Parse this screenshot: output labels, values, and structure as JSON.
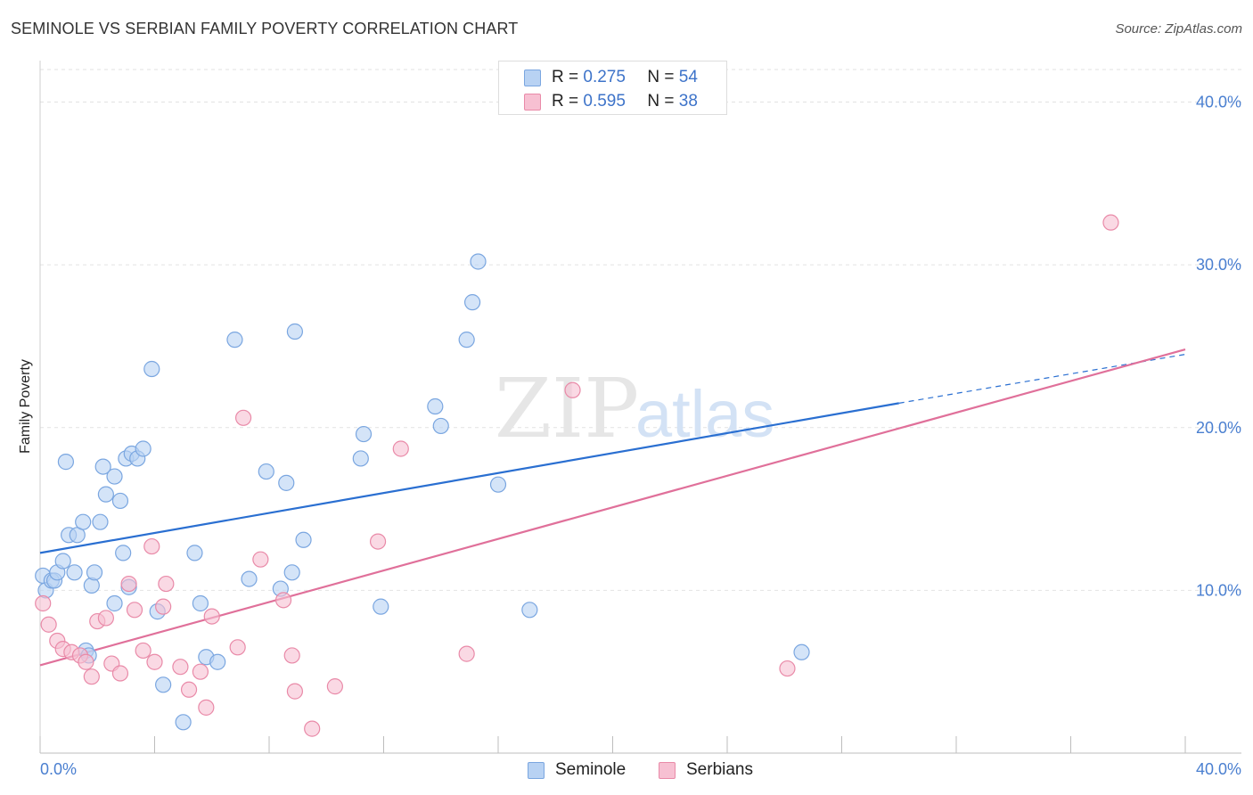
{
  "title": "SEMINOLE VS SERBIAN FAMILY POVERTY CORRELATION CHART",
  "source": "Source: ZipAtlas.com",
  "legend": [
    {
      "r_label": "R =",
      "r_value": "0.275",
      "n_label": "N =",
      "n_value": "54"
    },
    {
      "r_label": "R =",
      "r_value": "0.595",
      "n_label": "N =",
      "n_value": "38"
    }
  ],
  "bottom_legend": {
    "seminole": "Seminole",
    "serbians": "Serbians"
  },
  "colors": {
    "seminole_fill": "#b8d2f3",
    "seminole_stroke": "#7aa6e0",
    "seminole_line": "#2a6fd1",
    "serbians_fill": "#f7c0d2",
    "serbians_stroke": "#e98aa8",
    "serbians_line": "#e0709a",
    "tick_text": "#4a7fd0",
    "grid": "#e2e2e2"
  },
  "chart_data": {
    "type": "scatter",
    "title": "SEMINOLE VS SERBIAN FAMILY POVERTY CORRELATION CHART",
    "xlabel": "",
    "ylabel": "Family Poverty",
    "xlim": [
      0,
      40
    ],
    "ylim": [
      0,
      42
    ],
    "x_tick_labels": [
      "0.0%",
      "40.0%"
    ],
    "y_ticks": [
      10,
      20,
      30,
      40
    ],
    "y_tick_labels": [
      "10.0%",
      "20.0%",
      "30.0%",
      "40.0%"
    ],
    "grid": true,
    "legend_position": "top-center",
    "series": [
      {
        "name": "Seminole",
        "points": [
          [
            0.1,
            10.9
          ],
          [
            0.2,
            10.0
          ],
          [
            0.4,
            10.6
          ],
          [
            0.5,
            10.6
          ],
          [
            0.6,
            11.1
          ],
          [
            0.8,
            11.8
          ],
          [
            0.9,
            17.9
          ],
          [
            1.0,
            13.4
          ],
          [
            1.2,
            11.1
          ],
          [
            1.3,
            13.4
          ],
          [
            1.5,
            14.2
          ],
          [
            1.6,
            6.3
          ],
          [
            1.7,
            6.0
          ],
          [
            1.8,
            10.3
          ],
          [
            1.9,
            11.1
          ],
          [
            2.1,
            14.2
          ],
          [
            2.2,
            17.6
          ],
          [
            2.3,
            15.9
          ],
          [
            2.6,
            17.0
          ],
          [
            2.8,
            15.5
          ],
          [
            2.9,
            12.3
          ],
          [
            2.6,
            9.2
          ],
          [
            3.0,
            18.1
          ],
          [
            3.1,
            10.2
          ],
          [
            3.2,
            18.4
          ],
          [
            3.4,
            18.1
          ],
          [
            3.6,
            18.7
          ],
          [
            3.9,
            23.6
          ],
          [
            4.1,
            8.7
          ],
          [
            4.3,
            4.2
          ],
          [
            5.0,
            1.9
          ],
          [
            5.4,
            12.3
          ],
          [
            5.6,
            9.2
          ],
          [
            5.8,
            5.9
          ],
          [
            6.2,
            5.6
          ],
          [
            6.8,
            25.4
          ],
          [
            7.3,
            10.7
          ],
          [
            7.9,
            17.3
          ],
          [
            8.4,
            10.1
          ],
          [
            8.6,
            16.6
          ],
          [
            8.8,
            11.1
          ],
          [
            8.9,
            25.9
          ],
          [
            9.2,
            13.1
          ],
          [
            11.2,
            18.1
          ],
          [
            11.3,
            19.6
          ],
          [
            11.9,
            9.0
          ],
          [
            13.8,
            21.3
          ],
          [
            14.0,
            20.1
          ],
          [
            14.9,
            25.4
          ],
          [
            15.1,
            27.7
          ],
          [
            15.3,
            30.2
          ],
          [
            16.0,
            16.5
          ],
          [
            17.1,
            8.8
          ],
          [
            26.6,
            6.2
          ]
        ]
      },
      {
        "name": "Serbians",
        "points": [
          [
            0.1,
            9.2
          ],
          [
            0.3,
            7.9
          ],
          [
            0.6,
            6.9
          ],
          [
            0.8,
            6.4
          ],
          [
            1.1,
            6.2
          ],
          [
            1.4,
            6.0
          ],
          [
            1.6,
            5.6
          ],
          [
            1.8,
            4.7
          ],
          [
            2.0,
            8.1
          ],
          [
            2.3,
            8.3
          ],
          [
            2.5,
            5.5
          ],
          [
            2.8,
            4.9
          ],
          [
            3.1,
            10.4
          ],
          [
            3.3,
            8.8
          ],
          [
            3.6,
            6.3
          ],
          [
            3.9,
            12.7
          ],
          [
            4.0,
            5.6
          ],
          [
            4.3,
            9.0
          ],
          [
            4.4,
            10.4
          ],
          [
            4.9,
            5.3
          ],
          [
            5.2,
            3.9
          ],
          [
            5.6,
            5.0
          ],
          [
            5.8,
            2.8
          ],
          [
            6.0,
            8.4
          ],
          [
            6.9,
            6.5
          ],
          [
            7.1,
            20.6
          ],
          [
            7.7,
            11.9
          ],
          [
            8.5,
            9.4
          ],
          [
            8.8,
            6.0
          ],
          [
            8.9,
            3.8
          ],
          [
            9.5,
            1.5
          ],
          [
            10.3,
            4.1
          ],
          [
            11.8,
            13.0
          ],
          [
            12.6,
            18.7
          ],
          [
            14.9,
            6.1
          ],
          [
            18.6,
            22.3
          ],
          [
            26.1,
            5.2
          ],
          [
            37.4,
            32.6
          ]
        ]
      }
    ],
    "trendlines": [
      {
        "series": "Seminole",
        "x": [
          0.0,
          30.0
        ],
        "y": [
          12.3,
          21.5
        ],
        "dashed_extension_to": [
          40.0,
          24.5
        ]
      },
      {
        "series": "Serbians",
        "x": [
          0.0,
          40.0
        ],
        "y": [
          5.4,
          24.8
        ]
      }
    ],
    "watermark": "ZIPatlas"
  }
}
